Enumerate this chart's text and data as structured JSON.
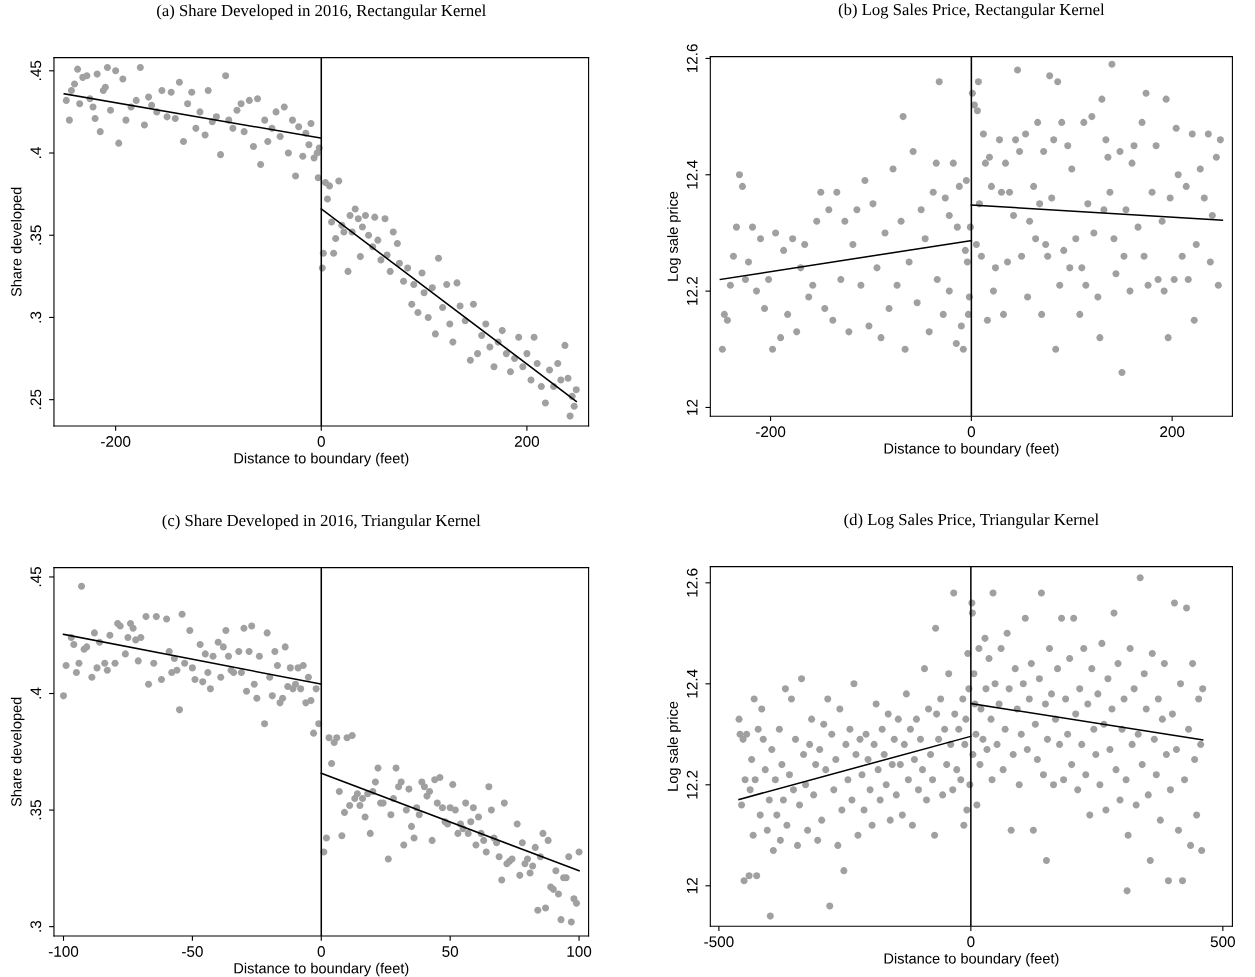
{
  "chart_data": [
    {
      "type": "scatter",
      "title": "(a) Share Developed in 2016, Rectangular Kernel",
      "xlabel": "Distance to boundary (feet)",
      "ylabel": "Share developed",
      "xlim": [
        -260,
        260
      ],
      "ylim": [
        0.234,
        0.458
      ],
      "xticks": [
        -200,
        0,
        200
      ],
      "yticks": [
        {
          "value": 0.25,
          "label": ".25"
        },
        {
          "value": 0.3,
          "label": ".3"
        },
        {
          "value": 0.35,
          "label": ".35"
        },
        {
          "value": 0.4,
          "label": ".4"
        },
        {
          "value": 0.45,
          "label": ".45"
        }
      ],
      "grid": false,
      "ref_lines": [
        {
          "axis": "x",
          "value": 0,
          "color": "#000000"
        }
      ],
      "series": [
        {
          "marker": "circle",
          "color": "#a0a0a0",
          "x": [
            -248,
            -245,
            -243,
            -240,
            -237,
            -235,
            -232,
            -228,
            -225,
            -222,
            -220,
            -218,
            -215,
            -212,
            -210,
            -208,
            -205,
            -200,
            -197,
            -193,
            -190,
            -185,
            -180,
            -176,
            -172,
            -168,
            -165,
            -160,
            -155,
            -150,
            -146,
            -142,
            -138,
            -134,
            -130,
            -126,
            -122,
            -118,
            -113,
            -110,
            -106,
            -102,
            -98,
            -93,
            -90,
            -86,
            -82,
            -78,
            -75,
            -70,
            -66,
            -62,
            -59,
            -55,
            -52,
            -48,
            -44,
            -40,
            -36,
            -32,
            -28,
            -25,
            -22,
            -18,
            -15,
            -12,
            -10,
            -7,
            -4,
            -2,
            -3,
            1,
            2,
            4,
            6,
            8,
            10,
            12,
            14,
            17,
            20,
            22,
            26,
            28,
            30,
            33,
            36,
            38,
            40,
            43,
            46,
            50,
            52,
            55,
            58,
            62,
            64,
            67,
            70,
            74,
            76,
            80,
            84,
            88,
            90,
            94,
            98,
            100,
            104,
            108,
            111,
            114,
            118,
            122,
            125,
            128,
            132,
            135,
            140,
            145,
            148,
            152,
            156,
            160,
            164,
            168,
            172,
            176,
            180,
            184,
            188,
            192,
            196,
            200,
            204,
            207,
            210,
            214,
            218,
            222,
            226,
            230,
            233,
            237,
            240,
            242,
            244,
            246,
            248
          ],
          "values": [
            0.432,
            0.42,
            0.438,
            0.442,
            0.451,
            0.43,
            0.446,
            0.447,
            0.433,
            0.428,
            0.421,
            0.448,
            0.413,
            0.438,
            0.44,
            0.452,
            0.426,
            0.45,
            0.406,
            0.445,
            0.42,
            0.428,
            0.432,
            0.452,
            0.417,
            0.434,
            0.429,
            0.425,
            0.438,
            0.422,
            0.437,
            0.421,
            0.443,
            0.407,
            0.43,
            0.437,
            0.415,
            0.425,
            0.411,
            0.438,
            0.419,
            0.422,
            0.399,
            0.447,
            0.42,
            0.415,
            0.426,
            0.43,
            0.413,
            0.432,
            0.404,
            0.433,
            0.393,
            0.42,
            0.407,
            0.415,
            0.425,
            0.41,
            0.428,
            0.4,
            0.42,
            0.386,
            0.416,
            0.398,
            0.412,
            0.405,
            0.418,
            0.397,
            0.4,
            0.403,
            0.385,
            0.33,
            0.339,
            0.382,
            0.372,
            0.38,
            0.358,
            0.339,
            0.348,
            0.383,
            0.356,
            0.352,
            0.328,
            0.362,
            0.352,
            0.366,
            0.36,
            0.337,
            0.355,
            0.362,
            0.35,
            0.343,
            0.361,
            0.347,
            0.335,
            0.36,
            0.338,
            0.328,
            0.352,
            0.345,
            0.333,
            0.322,
            0.33,
            0.308,
            0.32,
            0.303,
            0.327,
            0.315,
            0.3,
            0.318,
            0.29,
            0.336,
            0.306,
            0.32,
            0.296,
            0.285,
            0.321,
            0.307,
            0.298,
            0.274,
            0.308,
            0.278,
            0.289,
            0.296,
            0.282,
            0.27,
            0.285,
            0.292,
            0.278,
            0.267,
            0.275,
            0.288,
            0.27,
            0.278,
            0.262,
            0.288,
            0.272,
            0.258,
            0.248,
            0.268,
            0.258,
            0.272,
            0.262,
            0.283,
            0.263,
            0.24,
            0.252,
            0.246,
            0.256
          ]
        },
        {
          "type": "line",
          "color": "#000000",
          "x": [
            -250,
            0
          ],
          "values": [
            0.436,
            0.409
          ]
        },
        {
          "type": "line",
          "color": "#000000",
          "x": [
            0,
            248
          ],
          "values": [
            0.366,
            0.249
          ]
        }
      ]
    },
    {
      "type": "scatter",
      "title": "(b) Log Sales Price, Rectangular Kernel",
      "xlabel": "Distance to boundary (feet)",
      "ylabel": "Log sale price",
      "xlim": [
        -260,
        260
      ],
      "ylim": [
        11.985,
        12.603
      ],
      "xticks": [
        -200,
        0,
        200
      ],
      "yticks": [
        12,
        12.2,
        12.4,
        12.6
      ],
      "grid": false,
      "ref_lines": [
        {
          "axis": "x",
          "value": 0,
          "color": "#000000"
        }
      ],
      "series": [
        {
          "marker": "circle",
          "color": "#a0a0a0",
          "x": [
            -248,
            -246,
            -243,
            -240,
            -237,
            -234,
            -231,
            -228,
            -225,
            -222,
            -218,
            -214,
            -210,
            -206,
            -202,
            -198,
            -195,
            -190,
            -187,
            -183,
            -178,
            -174,
            -170,
            -166,
            -162,
            -158,
            -154,
            -150,
            -146,
            -142,
            -138,
            -134,
            -130,
            -126,
            -122,
            -118,
            -114,
            -110,
            -106,
            -102,
            -98,
            -94,
            -90,
            -86,
            -82,
            -78,
            -74,
            -70,
            -66,
            -62,
            -58,
            -54,
            -50,
            -46,
            -42,
            -38,
            -34,
            -68,
            -26,
            -22,
            -18,
            -14,
            -10,
            -6,
            -2,
            -35,
            -28,
            -22,
            -15,
            -12,
            -8,
            -5,
            -3,
            -1,
            -32,
            -4,
            1,
            3,
            5,
            6,
            7,
            8,
            10,
            12,
            14,
            16,
            18,
            20,
            22,
            24,
            28,
            30,
            32,
            34,
            36,
            38,
            42,
            44,
            46,
            48,
            50,
            54,
            56,
            58,
            62,
            64,
            66,
            68,
            70,
            72,
            74,
            76,
            78,
            80,
            82,
            84,
            86,
            88,
            90,
            92,
            96,
            98,
            100,
            104,
            108,
            110,
            112,
            114,
            116,
            120,
            122,
            126,
            128,
            130,
            132,
            134,
            136,
            138,
            140,
            142,
            144,
            148,
            150,
            152,
            154,
            158,
            160,
            162,
            166,
            170,
            172,
            174,
            176,
            180,
            184,
            186,
            190,
            192,
            194,
            196,
            198,
            202,
            204,
            206,
            210,
            214,
            216,
            220,
            222,
            224,
            228,
            232,
            236,
            238,
            240,
            244,
            246,
            248
          ],
          "values": [
            12.1,
            12.16,
            12.15,
            12.21,
            12.26,
            12.31,
            12.4,
            12.38,
            12.22,
            12.25,
            12.31,
            12.2,
            12.29,
            12.17,
            12.22,
            12.1,
            12.3,
            12.12,
            12.27,
            12.16,
            12.29,
            12.13,
            12.24,
            12.28,
            12.19,
            12.21,
            12.32,
            12.37,
            12.17,
            12.34,
            12.15,
            12.37,
            12.22,
            12.32,
            12.13,
            12.28,
            12.34,
            12.21,
            12.39,
            12.14,
            12.35,
            12.24,
            12.12,
            12.3,
            12.17,
            12.41,
            12.21,
            12.32,
            12.1,
            12.25,
            12.44,
            12.18,
            12.34,
            12.29,
            12.13,
            12.37,
            12.22,
            12.5,
            12.36,
            12.2,
            12.42,
            12.31,
            12.14,
            12.27,
            12.19,
            12.42,
            12.16,
            12.33,
            12.11,
            12.38,
            12.1,
            12.39,
            12.16,
            12.31,
            12.56,
            12.25,
            12.54,
            12.52,
            12.28,
            12.51,
            12.56,
            12.35,
            12.26,
            12.47,
            12.42,
            12.15,
            12.43,
            12.38,
            12.2,
            12.24,
            12.46,
            12.37,
            12.16,
            12.42,
            12.25,
            12.37,
            12.33,
            12.46,
            12.58,
            12.44,
            12.26,
            12.47,
            12.19,
            12.32,
            12.38,
            12.29,
            12.49,
            12.35,
            12.16,
            12.44,
            12.28,
            12.26,
            12.57,
            12.36,
            12.46,
            12.1,
            12.56,
            12.21,
            12.49,
            12.27,
            12.45,
            12.24,
            12.41,
            12.29,
            12.16,
            12.24,
            12.49,
            12.21,
            12.35,
            12.5,
            12.3,
            12.19,
            12.12,
            12.53,
            12.34,
            12.46,
            12.43,
            12.37,
            12.59,
            12.29,
            12.23,
            12.44,
            12.06,
            12.26,
            12.34,
            12.2,
            12.42,
            12.45,
            12.31,
            12.49,
            12.26,
            12.54,
            12.21,
            12.37,
            12.45,
            12.22,
            12.32,
            12.2,
            12.53,
            12.12,
            12.36,
            12.22,
            12.48,
            12.4,
            12.26,
            12.38,
            12.22,
            12.47,
            12.15,
            12.28,
            12.41,
            12.36,
            12.47,
            12.25,
            12.33,
            12.43,
            12.21,
            12.46
          ]
        },
        {
          "type": "line",
          "color": "#000000",
          "x": [
            -250,
            0
          ],
          "values": [
            12.22,
            12.287
          ]
        },
        {
          "type": "line",
          "color": "#000000",
          "x": [
            0,
            250
          ],
          "values": [
            12.348,
            12.322
          ]
        }
      ]
    },
    {
      "type": "scatter",
      "title": "(c) Share Developed in 2016, Triangular Kernel",
      "xlabel": "Distance to boundary (feet)",
      "ylabel": "Share developed",
      "xlim": [
        -103.7,
        103.7
      ],
      "ylim": [
        0.296,
        0.454
      ],
      "xticks": [
        -100,
        -50,
        0,
        50,
        100
      ],
      "yticks": [
        {
          "value": 0.3,
          "label": ".3"
        },
        {
          "value": 0.35,
          "label": ".35"
        },
        {
          "value": 0.4,
          "label": ".4"
        },
        {
          "value": 0.45,
          "label": ".45"
        }
      ],
      "grid": false,
      "ref_lines": [
        {
          "axis": "x",
          "value": 0,
          "color": "#000000"
        }
      ],
      "series": [
        {
          "marker": "circle",
          "color": "#a0a0a0",
          "x": [
            -100,
            -99,
            -97,
            -96,
            -95,
            -94,
            -93,
            -92,
            -91,
            -89,
            -88,
            -87,
            -86,
            -84,
            -83,
            -82,
            -80,
            -79,
            -78,
            -76,
            -75,
            -74,
            -73,
            -72,
            -71,
            -70,
            -68,
            -67,
            -65,
            -64,
            -62,
            -60,
            -59,
            -58,
            -57,
            -56,
            -55,
            -54,
            -53,
            -51,
            -50,
            -49,
            -47,
            -46,
            -45,
            -44,
            -43,
            -42,
            -40,
            -39,
            -38,
            -37,
            -36,
            -35,
            -34,
            -32,
            -31,
            -30,
            -29,
            -28,
            -27,
            -26,
            -25,
            -24,
            -22,
            -21,
            -20,
            -19,
            -18,
            -17,
            -16,
            -15,
            -14,
            -13,
            -12,
            -11,
            -10,
            -9,
            -8,
            -7,
            -6,
            -5,
            -4,
            -3,
            -2,
            -1,
            1,
            2,
            3,
            4,
            5,
            6,
            7,
            8,
            9,
            10,
            11,
            12,
            13,
            14,
            15,
            16,
            17,
            18,
            19,
            20,
            21,
            22,
            23,
            24,
            26,
            27,
            28,
            29,
            30,
            31,
            32,
            33,
            34,
            35,
            36,
            37,
            38,
            39,
            40,
            41,
            42,
            43,
            44,
            45,
            46,
            47,
            48,
            49,
            50,
            51,
            52,
            53,
            54,
            55,
            56,
            57,
            58,
            59,
            60,
            61,
            62,
            63,
            64,
            65,
            66,
            67,
            68,
            69,
            70,
            71,
            72,
            73,
            74,
            76,
            77,
            78,
            79,
            80,
            81,
            82,
            83,
            84,
            85,
            86,
            87,
            88,
            89,
            90,
            91,
            92,
            93,
            94,
            95,
            96,
            97,
            98,
            99,
            100
          ],
          "values": [
            0.399,
            0.412,
            0.424,
            0.421,
            0.409,
            0.413,
            0.446,
            0.419,
            0.42,
            0.407,
            0.426,
            0.411,
            0.422,
            0.413,
            0.41,
            0.425,
            0.413,
            0.43,
            0.429,
            0.417,
            0.424,
            0.43,
            0.428,
            0.423,
            0.414,
            0.424,
            0.433,
            0.404,
            0.413,
            0.433,
            0.406,
            0.432,
            0.418,
            0.409,
            0.415,
            0.41,
            0.393,
            0.434,
            0.413,
            0.427,
            0.411,
            0.406,
            0.421,
            0.405,
            0.417,
            0.409,
            0.402,
            0.416,
            0.422,
            0.407,
            0.42,
            0.427,
            0.416,
            0.41,
            0.409,
            0.418,
            0.409,
            0.428,
            0.401,
            0.418,
            0.429,
            0.404,
            0.398,
            0.416,
            0.387,
            0.426,
            0.407,
            0.399,
            0.418,
            0.412,
            0.396,
            0.398,
            0.42,
            0.403,
            0.411,
            0.402,
            0.404,
            0.411,
            0.402,
            0.412,
            0.396,
            0.407,
            0.397,
            0.383,
            0.402,
            0.387,
            0.332,
            0.338,
            0.381,
            0.37,
            0.379,
            0.381,
            0.358,
            0.339,
            0.349,
            0.381,
            0.352,
            0.382,
            0.355,
            0.357,
            0.352,
            0.355,
            0.347,
            0.357,
            0.34,
            0.358,
            0.362,
            0.368,
            0.353,
            0.353,
            0.329,
            0.348,
            0.355,
            0.368,
            0.36,
            0.362,
            0.335,
            0.35,
            0.359,
            0.343,
            0.338,
            0.351,
            0.348,
            0.362,
            0.36,
            0.356,
            0.358,
            0.337,
            0.363,
            0.353,
            0.364,
            0.351,
            0.345,
            0.344,
            0.351,
            0.361,
            0.35,
            0.34,
            0.344,
            0.342,
            0.353,
            0.34,
            0.345,
            0.351,
            0.335,
            0.347,
            0.34,
            0.337,
            0.332,
            0.36,
            0.35,
            0.338,
            0.336,
            0.33,
            0.32,
            0.353,
            0.327,
            0.328,
            0.329,
            0.344,
            0.322,
            0.336,
            0.327,
            0.329,
            0.323,
            0.326,
            0.334,
            0.307,
            0.33,
            0.34,
            0.308,
            0.337,
            0.317,
            0.316,
            0.324,
            0.314,
            0.303,
            0.321,
            0.321,
            0.33,
            0.302,
            0.312,
            0.31,
            0.332
          ]
        },
        {
          "type": "line",
          "color": "#000000",
          "x": [
            -100,
            0
          ],
          "values": [
            0.4254,
            0.404
          ]
        },
        {
          "type": "line",
          "color": "#000000",
          "x": [
            0,
            100
          ],
          "values": [
            0.3658,
            0.324
          ]
        }
      ]
    },
    {
      "type": "scatter",
      "title": "(d) Log Sales Price, Triangular Kernel",
      "xlabel": "Distance to boundary (feet)",
      "ylabel": "Log sale price",
      "xlim": [
        -517,
        519
      ],
      "ylim": [
        11.92,
        12.632
      ],
      "xticks": [
        -500,
        0,
        500
      ],
      "yticks": [
        12,
        12.2,
        12.4,
        12.6
      ],
      "grid": false,
      "ref_lines": [
        {
          "axis": "x",
          "value": 0,
          "color": "#000000"
        }
      ],
      "series": [
        {
          "marker": "circle",
          "color": "#a0a0a0",
          "x": [
            -460,
            -458,
            -455,
            -452,
            -450,
            -448,
            -445,
            -440,
            -438,
            -435,
            -432,
            -430,
            -428,
            -425,
            -422,
            -418,
            -415,
            -412,
            -408,
            -404,
            -400,
            -398,
            -395,
            -392,
            -388,
            -385,
            -380,
            -378,
            -375,
            -372,
            -368,
            -365,
            -360,
            -356,
            -352,
            -348,
            -344,
            -340,
            -336,
            -332,
            -328,
            -324,
            -320,
            -316,
            -312,
            -308,
            -304,
            -300,
            -296,
            -292,
            -288,
            -284,
            -280,
            -276,
            -272,
            -268,
            -264,
            -260,
            -256,
            -252,
            -248,
            -244,
            -240,
            -236,
            -232,
            -228,
            -224,
            -220,
            -216,
            -212,
            -208,
            -204,
            -200,
            -196,
            -192,
            -188,
            -184,
            -180,
            -176,
            -172,
            -168,
            -164,
            -160,
            -156,
            -152,
            -148,
            -144,
            -140,
            -136,
            -132,
            -128,
            -124,
            -120,
            -116,
            -112,
            -108,
            -104,
            -100,
            -96,
            -92,
            -88,
            -84,
            -80,
            -76,
            -72,
            -68,
            -64,
            -60,
            -56,
            -52,
            -48,
            -44,
            -40,
            -36,
            -32,
            -28,
            -24,
            -20,
            -16,
            -12,
            -8,
            -6,
            -4,
            -2,
            -34,
            -70,
            -14,
            -10,
            2,
            3,
            4,
            6,
            8,
            10,
            12,
            16,
            18,
            20,
            24,
            28,
            30,
            32,
            36,
            40,
            42,
            44,
            48,
            52,
            56,
            60,
            64,
            68,
            72,
            76,
            80,
            84,
            88,
            92,
            96,
            100,
            104,
            108,
            112,
            116,
            120,
            124,
            128,
            132,
            136,
            140,
            144,
            148,
            150,
            152,
            156,
            160,
            164,
            168,
            172,
            176,
            180,
            184,
            188,
            192,
            196,
            200,
            204,
            208,
            212,
            216,
            220,
            224,
            228,
            232,
            236,
            240,
            244,
            248,
            252,
            256,
            260,
            264,
            268,
            272,
            276,
            280,
            284,
            288,
            292,
            296,
            300,
            304,
            308,
            310,
            312,
            316,
            320,
            324,
            328,
            332,
            336,
            340,
            344,
            348,
            352,
            356,
            360,
            364,
            368,
            372,
            376,
            380,
            384,
            388,
            392,
            396,
            400,
            404,
            408,
            412,
            416,
            420,
            424,
            428,
            432,
            436,
            440,
            444,
            448,
            452,
            456,
            458,
            460
          ],
          "values": [
            12.33,
            12.3,
            12.16,
            12.29,
            12.01,
            12.21,
            12.3,
            12.02,
            12.19,
            12.25,
            12.1,
            12.37,
            12.21,
            12.02,
            12.31,
            12.14,
            12.35,
            12.29,
            12.23,
            12.11,
            12.17,
            11.94,
            12.27,
            12.07,
            12.21,
            12.14,
            12.31,
            12.09,
            12.24,
            12.17,
            12.39,
            12.12,
            12.22,
            12.37,
            12.19,
            12.29,
            12.08,
            12.16,
            12.41,
            12.26,
            12.2,
            12.11,
            12.28,
            12.33,
            12.18,
            12.24,
            12.09,
            12.27,
            12.13,
            12.32,
            12.23,
            12.37,
            11.96,
            12.3,
            12.19,
            12.25,
            12.08,
            12.35,
            12.15,
            12.03,
            12.28,
            12.21,
            12.31,
            12.17,
            12.4,
            12.26,
            12.1,
            12.29,
            12.22,
            12.15,
            12.3,
            12.25,
            12.19,
            12.12,
            12.28,
            12.36,
            12.23,
            12.17,
            12.31,
            12.26,
            12.2,
            12.34,
            12.13,
            12.24,
            12.29,
            12.18,
            12.33,
            12.24,
            12.14,
            12.28,
            12.38,
            12.21,
            12.31,
            12.12,
            12.25,
            12.33,
            12.19,
            12.29,
            12.23,
            12.43,
            12.17,
            12.35,
            12.26,
            12.21,
            12.1,
            12.34,
            12.29,
            12.37,
            12.18,
            12.31,
            12.24,
            12.42,
            12.28,
            12.19,
            12.34,
            12.23,
            12.31,
            12.21,
            12.37,
            12.28,
            12.15,
            12.46,
            12.39,
            12.2,
            12.58,
            12.51,
            12.12,
            12.33,
            12.56,
            12.54,
            12.26,
            12.42,
            12.36,
            12.3,
            12.16,
            12.47,
            12.24,
            12.35,
            12.29,
            12.49,
            12.39,
            12.27,
            12.45,
            12.33,
            12.21,
            12.58,
            12.4,
            12.28,
            12.36,
            12.47,
            12.23,
            12.31,
            12.5,
            12.39,
            12.11,
            12.26,
            12.43,
            12.35,
            12.2,
            12.3,
            12.4,
            12.53,
            12.27,
            12.37,
            12.44,
            12.11,
            12.32,
            12.25,
            12.41,
            12.58,
            12.22,
            12.36,
            12.05,
            12.29,
            12.47,
            12.38,
            12.2,
            12.33,
            12.43,
            12.28,
            12.53,
            12.21,
            12.37,
            12.3,
            12.45,
            12.24,
            12.53,
            12.34,
            12.19,
            12.39,
            12.28,
            12.47,
            12.22,
            12.36,
            12.14,
            12.43,
            12.31,
            12.26,
            12.38,
            12.2,
            12.48,
            12.32,
            12.15,
            12.41,
            12.27,
            12.35,
            12.54,
            12.23,
            12.44,
            12.17,
            12.31,
            12.37,
            12.21,
            11.99,
            12.1,
            12.47,
            12.28,
            12.39,
            12.16,
            12.3,
            12.61,
            12.24,
            12.42,
            12.35,
            12.18,
            12.05,
            12.46,
            12.29,
            12.22,
            12.37,
            12.13,
            12.33,
            12.44,
            12.26,
            12.01,
            12.19,
            12.34,
            12.56,
            12.27,
            12.11,
            12.4,
            12.01,
            12.21,
            12.55,
            12.31,
            12.08,
            12.44,
            12.25,
            12.14,
            12.37,
            12.28,
            12.07,
            12.39
          ]
        },
        {
          "type": "line",
          "color": "#000000",
          "x": [
            -460,
            0
          ],
          "values": [
            12.171,
            12.296
          ]
        },
        {
          "type": "line",
          "color": "#000000",
          "x": [
            0,
            460
          ],
          "values": [
            12.361,
            12.289
          ]
        }
      ]
    }
  ]
}
